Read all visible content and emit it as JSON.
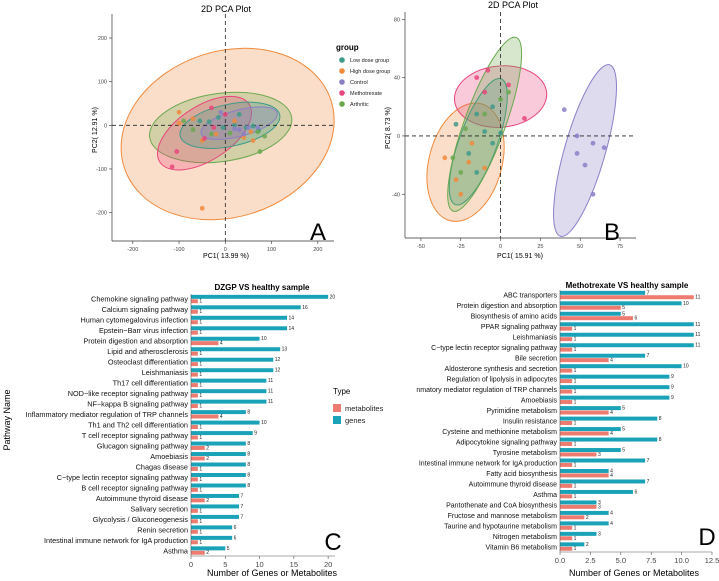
{
  "panel_letters": [
    "A",
    "B",
    "C",
    "D"
  ],
  "legend_pca": {
    "title": "group",
    "entries": [
      {
        "label": "Low dose group",
        "color": "#3e9a8a"
      },
      {
        "label": "High dose group",
        "color": "#f08a3c"
      },
      {
        "label": "Control",
        "color": "#8b7fc7"
      },
      {
        "label": "Methotrexate",
        "color": "#e8457a"
      },
      {
        "label": "Arthritic",
        "color": "#6aa84f"
      }
    ]
  },
  "legend_type": {
    "title": "Type",
    "entries": [
      {
        "label": "metabolites",
        "color": "#ee7b6f"
      },
      {
        "label": "genes",
        "color": "#1aa3b8"
      }
    ]
  },
  "y_axis_title_bars": "Pathway Name",
  "chart_data": [
    {
      "type": "scatter",
      "panel": "A",
      "title": "2D PCA Plot",
      "xlabel": "PC1( 13.99 %)",
      "ylabel": "PC2( 12.91 %)",
      "xlim": [
        -245,
        235
      ],
      "ylim": [
        -265,
        255
      ],
      "xticks": [
        -200,
        -100,
        0,
        100,
        200
      ],
      "yticks": [
        -200,
        -100,
        0,
        100,
        200
      ],
      "series": [
        {
          "name": "Low dose group",
          "color": "#3e9a8a",
          "points": [
            [
              -55,
              10
            ],
            [
              -35,
              8
            ],
            [
              -15,
              18
            ],
            [
              20,
              0
            ],
            [
              45,
              -5
            ],
            [
              60,
              -2
            ],
            [
              72,
              -12
            ],
            [
              30,
              25
            ],
            [
              -5,
              -5
            ]
          ]
        },
        {
          "name": "High dose group",
          "color": "#f08a3c",
          "points": [
            [
              -100,
              30
            ],
            [
              -70,
              15
            ],
            [
              -50,
              -35
            ],
            [
              -20,
              -20
            ],
            [
              20,
              10
            ],
            [
              40,
              -28
            ],
            [
              55,
              -15
            ],
            [
              -50,
              -190
            ],
            [
              -100,
              5
            ],
            [
              60,
              -35
            ]
          ]
        },
        {
          "name": "Control",
          "color": "#8b7fc7",
          "points": [
            [
              -10,
              30
            ],
            [
              20,
              -8
            ],
            [
              50,
              -5
            ],
            [
              70,
              -5
            ],
            [
              30,
              -10
            ],
            [
              40,
              -20
            ]
          ]
        },
        {
          "name": "Methotrexate",
          "color": "#e8457a",
          "points": [
            [
              -105,
              -60
            ],
            [
              -115,
              -95
            ],
            [
              -45,
              -30
            ],
            [
              -25,
              -5
            ],
            [
              0,
              25
            ],
            [
              -30,
              40
            ]
          ]
        },
        {
          "name": "Arthritic",
          "color": "#6aa84f",
          "points": [
            [
              -70,
              -10
            ],
            [
              -90,
              10
            ],
            [
              -30,
              -20
            ],
            [
              10,
              -18
            ],
            [
              70,
              -15
            ],
            [
              85,
              -25
            ],
            [
              75,
              -60
            ]
          ]
        }
      ],
      "ellipses": [
        {
          "group": "High dose group",
          "color": "#f08a3c",
          "cx": 5,
          "cy": -20,
          "rx": 235,
          "ry": 190,
          "rotation": 18
        },
        {
          "group": "Arthritic",
          "color": "#6aa84f",
          "cx": -10,
          "cy": -5,
          "rx": 155,
          "ry": 78,
          "rotation": 8
        },
        {
          "group": "Methotrexate",
          "color": "#e8457a",
          "cx": -45,
          "cy": -18,
          "rx": 115,
          "ry": 62,
          "rotation": 33
        },
        {
          "group": "Low dose group",
          "color": "#3e9a8a",
          "cx": 10,
          "cy": 0,
          "rx": 110,
          "ry": 48,
          "rotation": 12
        },
        {
          "group": "Control",
          "color": "#8b7fc7",
          "cx": 30,
          "cy": 5,
          "rx": 85,
          "ry": 30,
          "rotation": 15
        }
      ]
    },
    {
      "type": "scatter",
      "panel": "B",
      "title": "2D PCA Plot",
      "xlabel": "PC1( 15.91 %)",
      "ylabel": "PC2( 8.73 %)",
      "xlim": [
        -60,
        85
      ],
      "ylim": [
        -70,
        85
      ],
      "xticks": [
        -50,
        -25,
        0,
        25,
        50,
        75
      ],
      "yticks": [
        -40,
        0,
        40,
        80
      ],
      "series": [
        {
          "name": "Low dose group",
          "color": "#3e9a8a",
          "points": [
            [
              -15,
              15
            ],
            [
              -10,
              3
            ],
            [
              -5,
              -5
            ],
            [
              0,
              2
            ],
            [
              -20,
              -12
            ],
            [
              -28,
              8
            ],
            [
              -15,
              -25
            ],
            [
              -5,
              20
            ]
          ]
        },
        {
          "name": "High dose group",
          "color": "#f08a3c",
          "points": [
            [
              -35,
              -15
            ],
            [
              -20,
              -18
            ],
            [
              -28,
              -30
            ],
            [
              -10,
              -22
            ],
            [
              -18,
              -5
            ],
            [
              -25,
              -40
            ]
          ]
        },
        {
          "name": "Control",
          "color": "#8b7fc7",
          "points": [
            [
              40,
              18
            ],
            [
              48,
              0
            ],
            [
              58,
              -5
            ],
            [
              65,
              -8
            ],
            [
              53,
              -20
            ],
            [
              58,
              -40
            ],
            [
              48,
              -12
            ]
          ]
        },
        {
          "name": "Methotrexate",
          "color": "#e8457a",
          "points": [
            [
              -10,
              30
            ],
            [
              5,
              35
            ],
            [
              15,
              12
            ],
            [
              -15,
              40
            ],
            [
              -8,
              45
            ]
          ]
        },
        {
          "name": "Arthritic",
          "color": "#6aa84f",
          "points": [
            [
              -10,
              15
            ],
            [
              0,
              25
            ],
            [
              5,
              30
            ],
            [
              -25,
              -25
            ],
            [
              -30,
              -15
            ],
            [
              -22,
              5
            ]
          ]
        }
      ],
      "ellipses": [
        {
          "group": "High dose group",
          "color": "#f08a3c",
          "cx": -22,
          "cy": -18,
          "rx": 38,
          "ry": 25,
          "rotation": 75
        },
        {
          "group": "Methotrexate",
          "color": "#e8457a",
          "cx": 0,
          "cy": 27,
          "rx": 29,
          "ry": 21,
          "rotation": 5
        },
        {
          "group": "Low dose group",
          "color": "#3e9a8a",
          "cx": -14,
          "cy": -4,
          "rx": 42,
          "ry": 13,
          "rotation": 70
        },
        {
          "group": "Arthritic",
          "color": "#6aa84f",
          "cx": -10,
          "cy": 8,
          "rx": 58,
          "ry": 14,
          "rotation": 70
        },
        {
          "group": "Control",
          "color": "#8b7fc7",
          "cx": 53,
          "cy": -10,
          "rx": 56,
          "ry": 14,
          "rotation": 74
        }
      ]
    },
    {
      "type": "bar",
      "orientation": "horizontal",
      "panel": "C",
      "title": "DZGP VS healthy sample",
      "xlabel": "Number of Genes or Metabolites",
      "ylabel": "Pathway Name",
      "xlim": [
        0,
        21
      ],
      "xticks": [
        0,
        5,
        10,
        15,
        20
      ],
      "categories": [
        "Chemokine signaling pathway",
        "Calcium signaling pathway",
        "Human cytomegalovirus infection",
        "Epstein−Barr virus infection",
        "Protein digestion and absorption",
        "Lipid and atherosclerosis",
        "Osteoclast differentiation",
        "Leishmaniasis",
        "Th17 cell differentiation",
        "NOD−like receptor signaling pathway",
        "NF−kappa B signaling pathway",
        "Inflammatory mediator regulation of TRP channels",
        "Th1 and Th2 cell differentiation",
        "T cell receptor signaling pathway",
        "Glucagon signaling pathway",
        "Amoebiasis",
        "Chagas disease",
        "C−type lectin receptor signaling pathway",
        "B cell receptor signaling pathway",
        "Autoimmune thyroid disease",
        "Salivary secretion",
        "Glycolysis / Gluconeogenesis",
        "Renin secretion",
        "Intestinal immune network for IgA production",
        "Asthma"
      ],
      "series": [
        {
          "name": "genes",
          "color": "#1aa3b8",
          "values": [
            20,
            16,
            14,
            14,
            10,
            13,
            12,
            12,
            11,
            11,
            11,
            8,
            10,
            9,
            8,
            8,
            8,
            8,
            8,
            7,
            7,
            7,
            6,
            6,
            5
          ]
        },
        {
          "name": "metabolites",
          "color": "#ee7b6f",
          "values": [
            1,
            1,
            1,
            1,
            4,
            1,
            1,
            1,
            1,
            1,
            1,
            4,
            1,
            1,
            2,
            2,
            1,
            1,
            1,
            2,
            1,
            1,
            1,
            1,
            2
          ]
        }
      ]
    },
    {
      "type": "bar",
      "orientation": "horizontal",
      "panel": "D",
      "title": "Methotrexate VS healthy sample",
      "xlabel": "Number of Genes or Metabolites",
      "ylabel": "",
      "xlim": [
        0,
        12.5
      ],
      "xticks": [
        0.0,
        2.5,
        5.0,
        7.5,
        10.0,
        12.5
      ],
      "xtick_labels": [
        "0.0",
        "2.5",
        "5.0",
        "7.5",
        "10.0",
        "12.5"
      ],
      "categories": [
        "ABC transporters",
        "Protein digestion and absorption",
        "Biosynthesis of amino acids",
        "PPAR signaling pathway",
        "Leishmaniasis",
        "C−type lectin receptor signaling pathway",
        "Bile secretion",
        "Aldosterone synthesis and secretion",
        "Regulation of lipolysis in adipocytes",
        "nmatory mediator regulation of TRP channels",
        "Amoebiasis",
        "Pyrimidine metabolism",
        "Insulin resistance",
        "Cysteine and methionine metabolism",
        "Adipocytokine signaling pathway",
        "Tyrosine metabolism",
        "Intestinal immune network for IgA production",
        "Fatty acid biosynthesis",
        "Autoimmune thyroid disease",
        "Asthma",
        "Pantothenate and CoA biosynthesis",
        "Fructose and mannose metabolism",
        "Taurine and hypotaurine metabolism",
        "Nitrogen metabolism",
        "Vitamin B6 metabolism"
      ],
      "series": [
        {
          "name": "genes",
          "color": "#1aa3b8",
          "values": [
            7,
            10,
            5,
            11,
            11,
            11,
            7,
            10,
            9,
            9,
            9,
            5,
            8,
            5,
            8,
            5,
            7,
            4,
            7,
            6,
            3,
            4,
            4,
            3,
            2
          ]
        },
        {
          "name": "metabolites",
          "color": "#ee7b6f",
          "values": [
            11,
            5,
            6,
            1,
            1,
            1,
            4,
            1,
            1,
            1,
            1,
            4,
            1,
            4,
            1,
            3,
            1,
            4,
            1,
            1,
            3,
            2,
            1,
            1,
            1
          ]
        }
      ]
    }
  ]
}
